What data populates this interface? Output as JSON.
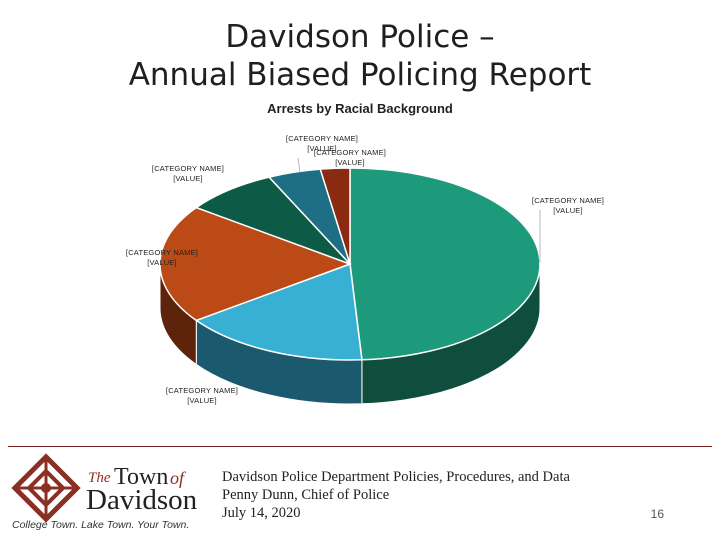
{
  "slide": {
    "title_line1": "Davidson Police –",
    "title_line2": "Annual Biased Policing Report",
    "page_number": "16"
  },
  "footer": {
    "line1": "Davidson Police Department Policies, Procedures, and Data",
    "line2": "Penny Dunn, Chief of Police",
    "line3": "July 14, 2020"
  },
  "logo": {
    "the": "The",
    "town": "Town",
    "of": "of",
    "name": "Davidson",
    "tagline": "College Town. Lake Town. Your Town."
  },
  "colors": {
    "accent": "#7a1f1f"
  },
  "chart_data": {
    "type": "pie",
    "style": "3d",
    "title": "Arrests by Racial Background",
    "labels": [
      {
        "category": "[CATEGORY NAME]",
        "value": "[VALUE]"
      },
      {
        "category": "[CATEGORY NAME]",
        "value": "[VALUE]"
      },
      {
        "category": "[CATEGORY NAME]",
        "value": "[VALUE]"
      },
      {
        "category": "[CATEGORY NAME]",
        "value": "[VALUE]"
      },
      {
        "category": "[CATEGORY NAME]",
        "value": "[VALUE]"
      },
      {
        "category": "[CATEGORY NAME]",
        "value": "[VALUE]"
      }
    ],
    "slices": [
      {
        "value": 49,
        "color": "#1d9a7b",
        "side_color": "#0f4d3d"
      },
      {
        "value": 16,
        "color": "#37b0d4",
        "side_color": "#1b5a6e"
      },
      {
        "value": 20,
        "color": "#bc4a16",
        "side_color": "#5e230b"
      },
      {
        "value": 8,
        "color": "#0d5a46",
        "side_color": "#072c22"
      },
      {
        "value": 4.5,
        "color": "#1e6f85",
        "side_color": "#0f3742"
      },
      {
        "value": 2.5,
        "color": "#8a2a10",
        "side_color": "#451508"
      }
    ],
    "legend": "none"
  }
}
